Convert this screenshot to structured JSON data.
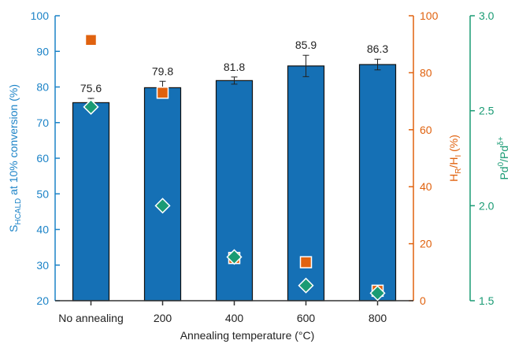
{
  "chart_data": {
    "type": "bar",
    "categories": [
      "No annealing",
      "200",
      "400",
      "600",
      "800"
    ],
    "xlabel": "Annealing temperature (°C)",
    "series": [
      {
        "axis": "left",
        "type": "bar",
        "values": [
          75.6,
          79.8,
          81.8,
          85.9,
          86.3
        ],
        "errors": [
          1.2,
          1.8,
          1.0,
          3.0,
          1.5
        ],
        "data_labels": [
          "75.6",
          "79.8",
          "81.8",
          "85.9",
          "86.3"
        ],
        "color": "#1570b5"
      },
      {
        "axis": "right1",
        "type": "scatter",
        "marker": "square",
        "values": [
          91.5,
          73.0,
          15.0,
          13.5,
          3.5
        ],
        "color": "#e0620f"
      },
      {
        "axis": "right2",
        "type": "scatter",
        "marker": "diamond",
        "values": [
          2.52,
          2.0,
          1.73,
          1.58,
          1.54
        ],
        "color": "#1a9b74"
      }
    ],
    "axes": {
      "left": {
        "label": "S HCALD at 10% conversion (%)",
        "label_main": "S",
        "label_sub": "HCALD",
        "label_rest": " at 10% conversion (%)",
        "ylim": [
          20,
          100
        ],
        "ticks": [
          "20",
          "30",
          "40",
          "50",
          "60",
          "70",
          "80",
          "90",
          "100"
        ],
        "color": "#1c83c7"
      },
      "right1": {
        "label": "HR/HI (%)",
        "label_parts": [
          "H",
          "R",
          "/H",
          "I",
          " (%)"
        ],
        "ylim": [
          0,
          100
        ],
        "ticks": [
          "0",
          "20",
          "40",
          "60",
          "80",
          "100"
        ],
        "color": "#e0620f"
      },
      "right2": {
        "label": "Pd0/Pdδ+",
        "label_parts": [
          "Pd",
          "0",
          "/Pd",
          "δ+"
        ],
        "ylim": [
          1.5,
          3.0
        ],
        "ticks": [
          "1.5",
          "2.0",
          "2.5",
          "3.0"
        ],
        "color": "#1a9b74"
      }
    },
    "grid": false
  }
}
